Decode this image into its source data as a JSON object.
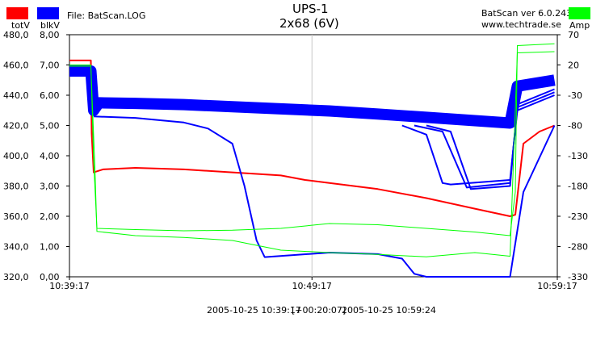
{
  "header": {
    "title": "UPS-1",
    "subtitle": "2x68 (6V)",
    "file_label": "File: BatScan.LOG",
    "app_version": "BatScan ver 6.0.243",
    "website": "www.techtrade.se"
  },
  "legend": {
    "totV": {
      "label": "totV",
      "color": "#ff0000"
    },
    "blkV": {
      "label": "blkV",
      "color": "#0000ff"
    },
    "amp": {
      "label": "Amp",
      "color": "#00ff00"
    }
  },
  "footer": {
    "start": "2005-10-25 10:39:17",
    "duration": "[+00:20:07]",
    "end": "2005-10-25 10:59:24"
  },
  "chart_data": {
    "type": "line",
    "title": "UPS-1",
    "subtitle": "2x68 (6V)",
    "x_ticks": [
      "10:39:17",
      "10:49:17",
      "10:59:17"
    ],
    "xlim": [
      "10:39:17",
      "10:59:24"
    ],
    "axes": {
      "totV": {
        "ticks": [
          "480,0",
          "460,0",
          "440,0",
          "420,0",
          "400,0",
          "380,0",
          "360,0",
          "340,0",
          "320,0"
        ],
        "range": [
          320,
          480
        ]
      },
      "blkV": {
        "ticks": [
          "8,00",
          "7,00",
          "6,00",
          "5,00",
          "4,00",
          "3,00",
          "2,00",
          "1,00",
          "0,00"
        ],
        "range": [
          0,
          8
        ]
      },
      "amp": {
        "ticks": [
          "70",
          "20",
          "-30",
          "-80",
          "-130",
          "-180",
          "-230",
          "-280",
          "-330"
        ],
        "range": [
          -330,
          70
        ]
      }
    },
    "grid": "center vertical line",
    "series": [
      {
        "name": "totV",
        "axis": "totV",
        "color": "#ff0000",
        "points": [
          [
            "10:39:17",
            463.0
          ],
          [
            "10:40:10",
            463.0
          ],
          [
            "10:40:12",
            415
          ],
          [
            "10:40:17",
            389
          ],
          [
            "10:40:40",
            391
          ],
          [
            "10:42:00",
            392
          ],
          [
            "10:44:00",
            391
          ],
          [
            "10:46:00",
            389
          ],
          [
            "10:48:00",
            387
          ],
          [
            "10:49:00",
            384
          ],
          [
            "10:50:00",
            382
          ],
          [
            "10:52:00",
            378
          ],
          [
            "10:54:00",
            372
          ],
          [
            "10:56:00",
            365
          ],
          [
            "10:57:27",
            360
          ],
          [
            "10:57:40",
            361
          ],
          [
            "10:58:00",
            408
          ],
          [
            "10:58:40",
            416
          ],
          [
            "10:59:17",
            420
          ]
        ]
      },
      {
        "name": "blkV_band",
        "axis": "blkV",
        "color": "#0000ff",
        "points": [
          [
            "10:39:17",
            6.8
          ],
          [
            "10:40:10",
            6.8
          ],
          [
            "10:40:17",
            5.5
          ],
          [
            "10:40:30",
            5.75
          ],
          [
            "10:42:00",
            5.73
          ],
          [
            "10:44:00",
            5.69
          ],
          [
            "10:46:00",
            5.62
          ],
          [
            "10:48:00",
            5.55
          ],
          [
            "10:50:00",
            5.48
          ],
          [
            "10:52:00",
            5.38
          ],
          [
            "10:54:00",
            5.27
          ],
          [
            "10:56:00",
            5.16
          ],
          [
            "10:57:27",
            5.08
          ],
          [
            "10:57:45",
            6.3
          ],
          [
            "10:59:17",
            6.5
          ]
        ]
      },
      {
        "name": "blkV_cell_1",
        "axis": "blkV",
        "color": "#0000ff",
        "points": [
          [
            "10:40:17",
            5.3
          ],
          [
            "10:42:00",
            5.25
          ],
          [
            "10:44:00",
            5.1
          ],
          [
            "10:45:00",
            4.9
          ],
          [
            "10:46:00",
            4.4
          ],
          [
            "10:46:30",
            3.0
          ],
          [
            "10:47:00",
            1.2
          ],
          [
            "10:47:20",
            0.65
          ],
          [
            "10:50:00",
            0.8
          ],
          [
            "10:52:00",
            0.75
          ],
          [
            "10:53:00",
            0.6
          ],
          [
            "10:53:30",
            0.1
          ],
          [
            "10:54:00",
            0.0
          ],
          [
            "10:57:27",
            0.0
          ],
          [
            "10:58:00",
            2.8
          ],
          [
            "10:59:17",
            5.0
          ]
        ]
      },
      {
        "name": "blkV_cell_2",
        "axis": "blkV",
        "color": "#0000ff",
        "points": [
          [
            "10:53:00",
            5.0
          ],
          [
            "10:54:00",
            4.7
          ],
          [
            "10:54:40",
            3.1
          ],
          [
            "10:55:00",
            3.05
          ],
          [
            "10:57:27",
            3.2
          ],
          [
            "10:57:45",
            5.5
          ],
          [
            "10:59:17",
            6.0
          ]
        ]
      },
      {
        "name": "blkV_cell_3",
        "axis": "blkV",
        "color": "#0000ff",
        "points": [
          [
            "10:53:30",
            5.0
          ],
          [
            "10:54:40",
            4.8
          ],
          [
            "10:55:40",
            2.95
          ],
          [
            "10:57:27",
            3.1
          ],
          [
            "10:57:45",
            5.6
          ],
          [
            "10:59:17",
            6.1
          ]
        ]
      },
      {
        "name": "blkV_cell_4",
        "axis": "blkV",
        "color": "#0000ff",
        "points": [
          [
            "10:54:00",
            5.0
          ],
          [
            "10:55:00",
            4.8
          ],
          [
            "10:55:50",
            2.9
          ],
          [
            "10:57:27",
            3.0
          ],
          [
            "10:57:45",
            5.7
          ],
          [
            "10:59:17",
            6.2
          ]
        ]
      },
      {
        "name": "Amp",
        "axis": "amp",
        "color": "#00ff00",
        "points": [
          [
            "10:39:17",
            20
          ],
          [
            "10:40:10",
            20
          ],
          [
            "10:40:17",
            -140
          ],
          [
            "10:40:25",
            -250
          ],
          [
            "10:42:00",
            -252
          ],
          [
            "10:44:00",
            -254
          ],
          [
            "10:46:00",
            -253
          ],
          [
            "10:48:00",
            -250
          ],
          [
            "10:50:00",
            -242
          ],
          [
            "10:52:00",
            -244
          ],
          [
            "10:54:00",
            -250
          ],
          [
            "10:56:00",
            -256
          ],
          [
            "10:57:27",
            -262
          ],
          [
            "10:57:40",
            -190
          ],
          [
            "10:57:45",
            52
          ],
          [
            "10:59:17",
            55
          ]
        ]
      },
      {
        "name": "Amp_2",
        "axis": "amp",
        "color": "#00ff00",
        "points": [
          [
            "10:39:17",
            18
          ],
          [
            "10:40:10",
            18
          ],
          [
            "10:40:20",
            -150
          ],
          [
            "10:40:25",
            -255
          ],
          [
            "10:42:00",
            -262
          ],
          [
            "10:44:00",
            -265
          ],
          [
            "10:46:00",
            -270
          ],
          [
            "10:48:00",
            -286
          ],
          [
            "10:50:00",
            -290
          ],
          [
            "10:52:00",
            -293
          ],
          [
            "10:54:00",
            -297
          ],
          [
            "10:56:00",
            -290
          ],
          [
            "10:57:27",
            -296
          ],
          [
            "10:57:45",
            40
          ],
          [
            "10:59:17",
            42
          ]
        ]
      }
    ]
  }
}
